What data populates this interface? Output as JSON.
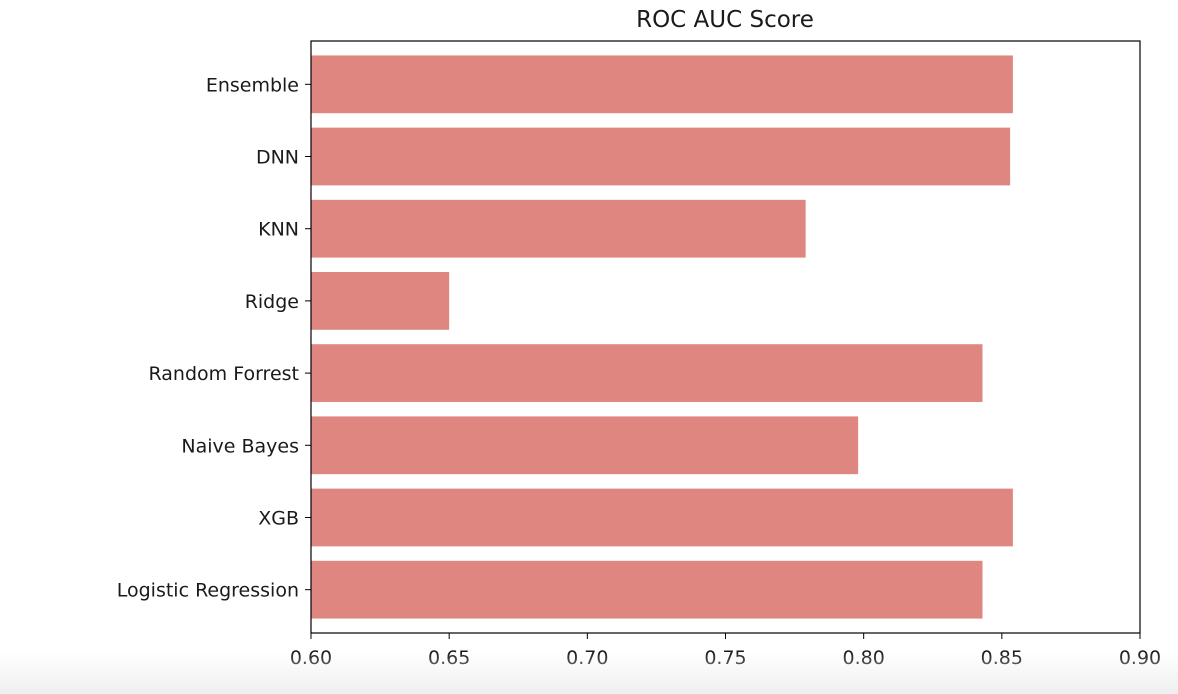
{
  "chart_data": {
    "type": "bar",
    "orientation": "horizontal",
    "title": "ROC AUC Score",
    "xlabel": "",
    "ylabel": "",
    "categories": [
      "Logistic Regression",
      "XGB",
      "Naive Bayes",
      "Random Forrest",
      "Ridge",
      "KNN",
      "DNN",
      "Ensemble"
    ],
    "values": [
      0.843,
      0.854,
      0.798,
      0.843,
      0.65,
      0.779,
      0.853,
      0.854
    ],
    "xlim": [
      0.6,
      0.9
    ],
    "xticks": [
      "0.60",
      "0.65",
      "0.70",
      "0.75",
      "0.80",
      "0.85",
      "0.90"
    ],
    "bar_color": "#e08680",
    "grid": false,
    "legend": "none"
  }
}
